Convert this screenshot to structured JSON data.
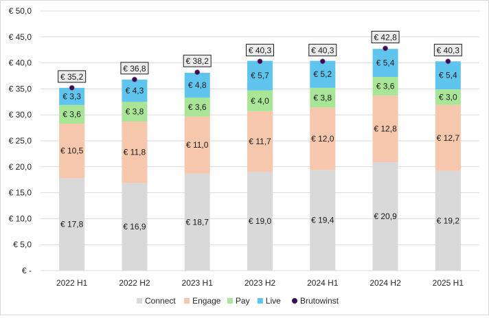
{
  "chart_data": {
    "type": "bar",
    "stacked": true,
    "categories": [
      "2022 H1",
      "2022 H2",
      "2023 H1",
      "2023 H2",
      "2024 H1",
      "2024 H2",
      "2025 H1"
    ],
    "series": [
      {
        "name": "Connect",
        "color": "#d9d9d9",
        "values": [
          17.8,
          16.9,
          18.7,
          19.0,
          19.4,
          20.9,
          19.2
        ],
        "labels": [
          "€ 17,8",
          "€ 16,9",
          "€ 18,7",
          "€ 19,0",
          "€ 19,4",
          "€ 20,9",
          "€ 19,2"
        ]
      },
      {
        "name": "Engage",
        "color": "#f6c6ad",
        "values": [
          10.5,
          11.8,
          11.0,
          11.7,
          12.0,
          12.8,
          12.7
        ],
        "labels": [
          "€ 10,5",
          "€ 11,8",
          "€ 11,0",
          "€ 11,7",
          "€ 12,0",
          "€ 12,8",
          "€ 12,7"
        ]
      },
      {
        "name": "Pay",
        "color": "#a9e596",
        "values": [
          3.6,
          3.8,
          3.6,
          4.0,
          3.8,
          3.6,
          3.0
        ],
        "labels": [
          "€ 3,6",
          "€ 3,8",
          "€ 3,6",
          "€ 4,0",
          "€ 3,8",
          "€ 3,6",
          "€ 3,0"
        ]
      },
      {
        "name": "Live",
        "color": "#5fc4ee",
        "values": [
          3.3,
          4.3,
          4.8,
          5.7,
          5.2,
          5.4,
          5.4
        ],
        "labels": [
          "€ 3,3",
          "€ 4,3",
          "€ 4,8",
          "€ 5,7",
          "€ 5,2",
          "€ 5,4",
          "€ 5,4"
        ]
      }
    ],
    "total_series": {
      "name": "Brutowinst",
      "type": "scatter",
      "color": "#3b0a52",
      "values": [
        35.2,
        36.8,
        38.2,
        40.3,
        40.3,
        42.8,
        40.3
      ],
      "labels": [
        "€ 35,2",
        "€ 36,8",
        "€ 38,2",
        "€ 40,3",
        "€ 40,3",
        "€ 42,8",
        "€ 40,3"
      ]
    },
    "ylim": [
      0,
      50
    ],
    "y_ticks": [
      0,
      5,
      10,
      15,
      20,
      25,
      30,
      35,
      40,
      45,
      50
    ],
    "y_tick_labels": [
      "€ -",
      "€ 5,0",
      "€ 10,0",
      "€ 15,0",
      "€ 20,0",
      "€ 25,0",
      "€ 30,0",
      "€ 35,0",
      "€ 40,0",
      "€ 45,0",
      "€ 50,0"
    ],
    "grid": true,
    "legend_position": "bottom",
    "legend": [
      "Connect",
      "Engage",
      "Pay",
      "Live",
      "Brutowinst"
    ]
  }
}
